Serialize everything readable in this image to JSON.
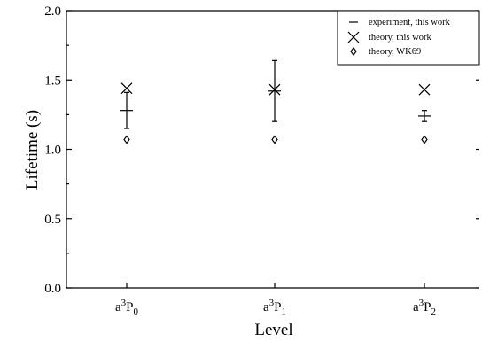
{
  "chart_data": {
    "type": "scatter",
    "categories": [
      {
        "base": "a",
        "sup": "3",
        "main": "P",
        "sub": "0"
      },
      {
        "base": "a",
        "sup": "3",
        "main": "P",
        "sub": "1"
      },
      {
        "base": "a",
        "sup": "3",
        "main": "P",
        "sub": "2"
      }
    ],
    "xlabel": "Level",
    "ylabel": "Lifetime (s)",
    "ylim": [
      0.0,
      2.0
    ],
    "yticks": [
      "0.0",
      "0.5",
      "1.0",
      "1.5",
      "2.0"
    ],
    "grid": false,
    "legend_position": "top-right",
    "series": [
      {
        "name": "experiment, this work",
        "marker": "errorbar",
        "values": [
          1.28,
          1.42,
          1.24
        ],
        "err_low": [
          1.15,
          1.2,
          1.2
        ],
        "err_high": [
          1.41,
          1.64,
          1.28
        ]
      },
      {
        "name": "theory, this work",
        "marker": "x",
        "values": [
          1.44,
          1.43,
          1.43
        ]
      },
      {
        "name": "theory, WK69",
        "marker": "diamond",
        "values": [
          1.07,
          1.07,
          1.07
        ]
      }
    ]
  }
}
